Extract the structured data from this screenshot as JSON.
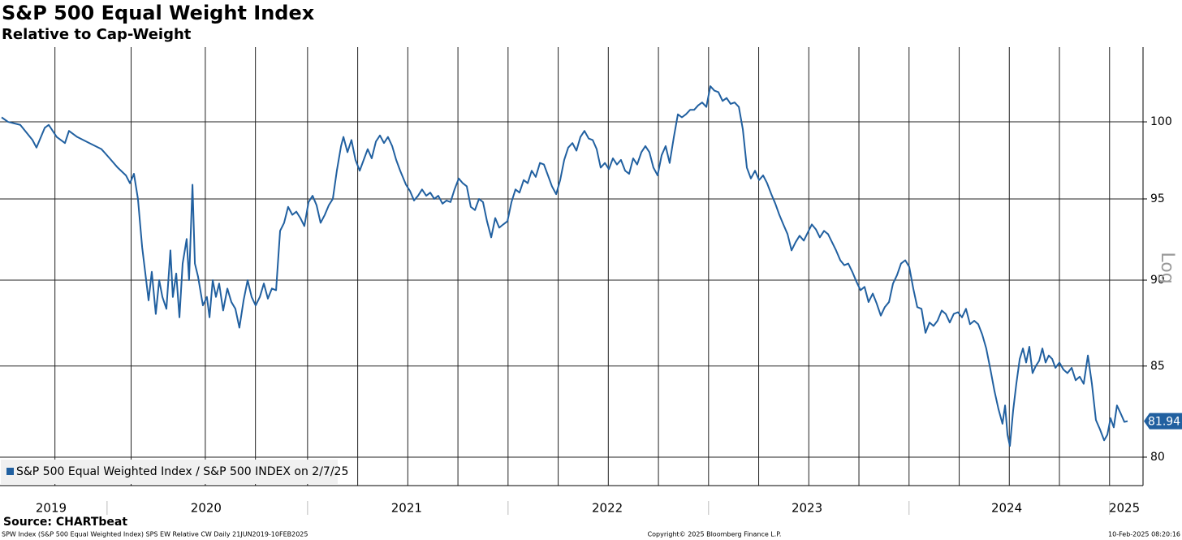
{
  "chart_data": {
    "type": "line",
    "title": "S&P 500 Equal Weight Index",
    "subtitle": "Relative to Cap-Weight",
    "source": "Source: CHARTbeat",
    "footer_left": "SPW Index (S&P 500 Equal Weighted Index) SPS EW Relative CW  Daily 21JUN2019-10FEB2025",
    "footer_center": "Copyright© 2025 Bloomberg Finance L.P.",
    "footer_right": "10-Feb-2025 08:20:16",
    "scale_label": "Log",
    "log_scale": true,
    "grid": true,
    "legend": "lower left",
    "xlim": [
      2019.466,
      2025.167
    ],
    "ylim": [
      78.5,
      105.1
    ],
    "yticks": [
      80,
      85,
      90,
      95,
      100
    ],
    "xticks": [
      {
        "value": 2019.721,
        "label": "2019"
      },
      {
        "value": 2020.494,
        "label": "2020"
      },
      {
        "value": 2021.494,
        "label": "2021"
      },
      {
        "value": 2022.495,
        "label": "2022"
      },
      {
        "value": 2023.491,
        "label": "2023"
      },
      {
        "value": 2024.487,
        "label": "2024"
      },
      {
        "value": 2025.074,
        "label": "2025"
      }
    ],
    "xgrid": [
      2019.74,
      2020.12,
      2020.49,
      2020.74,
      2021.0,
      2021.25,
      2021.5,
      2021.75,
      2022.0,
      2022.25,
      2022.5,
      2022.75,
      2023.0,
      2023.25,
      2023.5,
      2023.75,
      2024.0,
      2024.25,
      2024.5,
      2024.75,
      2025.0
    ],
    "x": [
      2019.474,
      2019.506,
      2019.567,
      2019.628,
      2019.648,
      2019.689,
      2019.709,
      2019.749,
      2019.79,
      2019.81,
      2019.851,
      2019.911,
      2019.972,
      2020.013,
      2020.053,
      2020.094,
      2020.114,
      2020.134,
      2020.154,
      2020.175,
      2020.195,
      2020.207,
      2020.223,
      2020.243,
      2020.26,
      2020.276,
      2020.296,
      2020.316,
      2020.328,
      2020.345,
      2020.361,
      2020.377,
      2020.397,
      2020.409,
      2020.426,
      2020.438,
      2020.454,
      2020.478,
      2020.498,
      2020.511,
      2020.527,
      2020.543,
      2020.559,
      2020.579,
      2020.6,
      2020.62,
      2020.64,
      2020.66,
      2020.681,
      2020.701,
      2020.721,
      2020.741,
      2020.762,
      2020.782,
      2020.802,
      2020.822,
      2020.843,
      2020.863,
      2020.883,
      2020.903,
      2020.924,
      2020.944,
      2020.964,
      2020.984,
      2021.005,
      2021.025,
      2021.045,
      2021.065,
      2021.086,
      2021.106,
      2021.126,
      2021.146,
      2021.167,
      2021.179,
      2021.199,
      2021.219,
      2021.239,
      2021.26,
      2021.28,
      2021.3,
      2021.32,
      2021.341,
      2021.361,
      2021.381,
      2021.401,
      2021.422,
      2021.442,
      2021.462,
      2021.491,
      2021.511,
      2021.531,
      2021.551,
      2021.571,
      2021.592,
      2021.612,
      2021.632,
      2021.652,
      2021.673,
      2021.693,
      2021.713,
      2021.733,
      2021.754,
      2021.774,
      2021.794,
      2021.814,
      2021.835,
      2021.855,
      2021.875,
      2021.895,
      2021.916,
      2021.936,
      2021.956,
      2021.976,
      2021.997,
      2022.017,
      2022.037,
      2022.057,
      2022.078,
      2022.098,
      2022.118,
      2022.138,
      2022.159,
      2022.179,
      2022.199,
      2022.219,
      2022.24,
      2022.26,
      2022.28,
      2022.3,
      2022.321,
      2022.341,
      2022.361,
      2022.381,
      2022.402,
      2022.422,
      2022.442,
      2022.462,
      2022.483,
      2022.503,
      2022.523,
      2022.543,
      2022.563,
      2022.584,
      2022.604,
      2022.624,
      2022.644,
      2022.665,
      2022.685,
      2022.705,
      2022.725,
      2022.746,
      2022.766,
      2022.786,
      2022.806,
      2022.827,
      2022.847,
      2022.867,
      2022.887,
      2022.908,
      2022.928,
      2022.948,
      2022.968,
      2022.989,
      2023.009,
      2023.029,
      2023.049,
      2023.07,
      2023.09,
      2023.11,
      2023.13,
      2023.151,
      2023.171,
      2023.191,
      2023.211,
      2023.232,
      2023.252,
      2023.272,
      2023.292,
      2023.313,
      2023.333,
      2023.353,
      2023.373,
      2023.394,
      2023.414,
      2023.434,
      2023.454,
      2023.475,
      2023.495,
      2023.515,
      2023.535,
      2023.555,
      2023.576,
      2023.596,
      2023.616,
      2023.636,
      2023.657,
      2023.677,
      2023.697,
      2023.717,
      2023.738,
      2023.758,
      2023.778,
      2023.798,
      2023.819,
      2023.839,
      2023.859,
      2023.879,
      2023.9,
      2023.92,
      2023.94,
      2023.96,
      2023.981,
      2024.001,
      2024.021,
      2024.041,
      2024.062,
      2024.082,
      2024.102,
      2024.122,
      2024.142,
      2024.163,
      2024.183,
      2024.203,
      2024.223,
      2024.244,
      2024.264,
      2024.284,
      2024.304,
      2024.325,
      2024.345,
      2024.365,
      2024.385,
      2024.406,
      2024.426,
      2024.446,
      2024.466,
      2024.479,
      2024.491,
      2024.503,
      2024.519,
      2024.535,
      2024.552,
      2024.568,
      2024.584,
      2024.6,
      2024.616,
      2024.632,
      2024.649,
      2024.665,
      2024.681,
      2024.697,
      2024.714,
      2024.73,
      2024.75,
      2024.77,
      2024.79,
      2024.811,
      2024.831,
      2024.851,
      2024.871,
      2024.892,
      2024.912,
      2024.932,
      2024.952,
      2024.973,
      2024.989,
      2025.005,
      2025.021,
      2025.037,
      2025.054,
      2025.074,
      2025.09
    ],
    "series": [
      {
        "name": "S&P 500 Equal Weighted Index / S&P 500 INDEX on 2/7/25",
        "color": "#2160a0",
        "values": [
          100.3,
          100.0,
          99.8,
          98.8,
          98.3,
          99.6,
          99.8,
          99.0,
          98.6,
          99.4,
          99.0,
          98.6,
          98.2,
          97.6,
          97.0,
          96.5,
          96.0,
          96.6,
          95.0,
          92.0,
          90.0,
          88.8,
          90.5,
          88.0,
          90.0,
          89.0,
          88.3,
          91.8,
          89.0,
          90.4,
          87.8,
          91.0,
          92.5,
          90.0,
          95.9,
          91.0,
          90.2,
          88.5,
          89.0,
          87.8,
          90.0,
          89.0,
          89.8,
          88.2,
          89.5,
          88.7,
          88.3,
          87.2,
          88.8,
          90.0,
          89.0,
          88.5,
          89.0,
          89.8,
          88.9,
          89.5,
          89.4,
          93.0,
          93.5,
          94.5,
          94.0,
          94.2,
          93.8,
          93.3,
          94.8,
          95.2,
          94.6,
          93.5,
          94.0,
          94.6,
          95.0,
          96.8,
          98.4,
          99.0,
          98.0,
          98.8,
          97.5,
          96.8,
          97.5,
          98.2,
          97.6,
          98.7,
          99.1,
          98.6,
          99.0,
          98.4,
          97.5,
          96.8,
          95.9,
          95.5,
          94.9,
          95.2,
          95.6,
          95.2,
          95.4,
          95.0,
          95.2,
          94.7,
          94.9,
          94.8,
          95.6,
          96.3,
          96.0,
          95.8,
          94.5,
          94.3,
          95.0,
          94.8,
          93.6,
          92.6,
          93.8,
          93.2,
          93.4,
          93.6,
          94.8,
          95.6,
          95.4,
          96.2,
          96.0,
          96.8,
          96.4,
          97.3,
          97.2,
          96.5,
          95.8,
          95.3,
          96.2,
          97.5,
          98.3,
          98.6,
          98.1,
          99.0,
          99.4,
          98.9,
          98.8,
          98.2,
          97.0,
          97.3,
          96.9,
          97.6,
          97.2,
          97.5,
          96.8,
          96.6,
          97.6,
          97.2,
          98.0,
          98.4,
          98.0,
          97.0,
          96.5,
          97.8,
          98.4,
          97.3,
          99.0,
          100.5,
          100.3,
          100.5,
          100.8,
          100.8,
          101.1,
          101.3,
          101.0,
          102.4,
          102.1,
          102.0,
          101.4,
          101.6,
          101.2,
          101.3,
          101.0,
          99.5,
          97.0,
          96.3,
          96.8,
          96.2,
          96.5,
          96.0,
          95.3,
          94.7,
          94.0,
          93.4,
          92.8,
          91.8,
          92.3,
          92.7,
          92.4,
          92.9,
          93.4,
          93.1,
          92.6,
          93.0,
          92.8,
          92.3,
          91.8,
          91.2,
          90.9,
          91.0,
          90.5,
          89.9,
          89.4,
          89.6,
          88.7,
          89.2,
          88.6,
          87.9,
          88.4,
          88.7,
          89.8,
          90.3,
          91.0,
          91.2,
          90.8,
          89.5,
          88.4,
          88.3,
          86.9,
          87.5,
          87.3,
          87.6,
          88.2,
          88.0,
          87.5,
          88.0,
          88.1,
          87.8,
          88.3,
          87.4,
          87.6,
          87.4,
          86.8,
          86.0,
          84.8,
          83.6,
          82.6,
          81.8,
          82.8,
          81.2,
          80.6,
          82.5,
          84.0,
          85.4,
          86.0,
          85.2,
          86.1,
          84.6,
          85.0,
          85.3,
          86.0,
          85.2,
          85.6,
          85.4,
          84.9,
          85.2,
          84.8,
          84.6,
          84.9,
          84.2,
          84.4,
          84.0,
          85.6,
          84.0,
          82.0,
          81.5,
          80.9,
          81.2,
          82.1,
          81.6,
          82.8,
          82.4,
          81.9,
          81.94
        ]
      }
    ]
  }
}
